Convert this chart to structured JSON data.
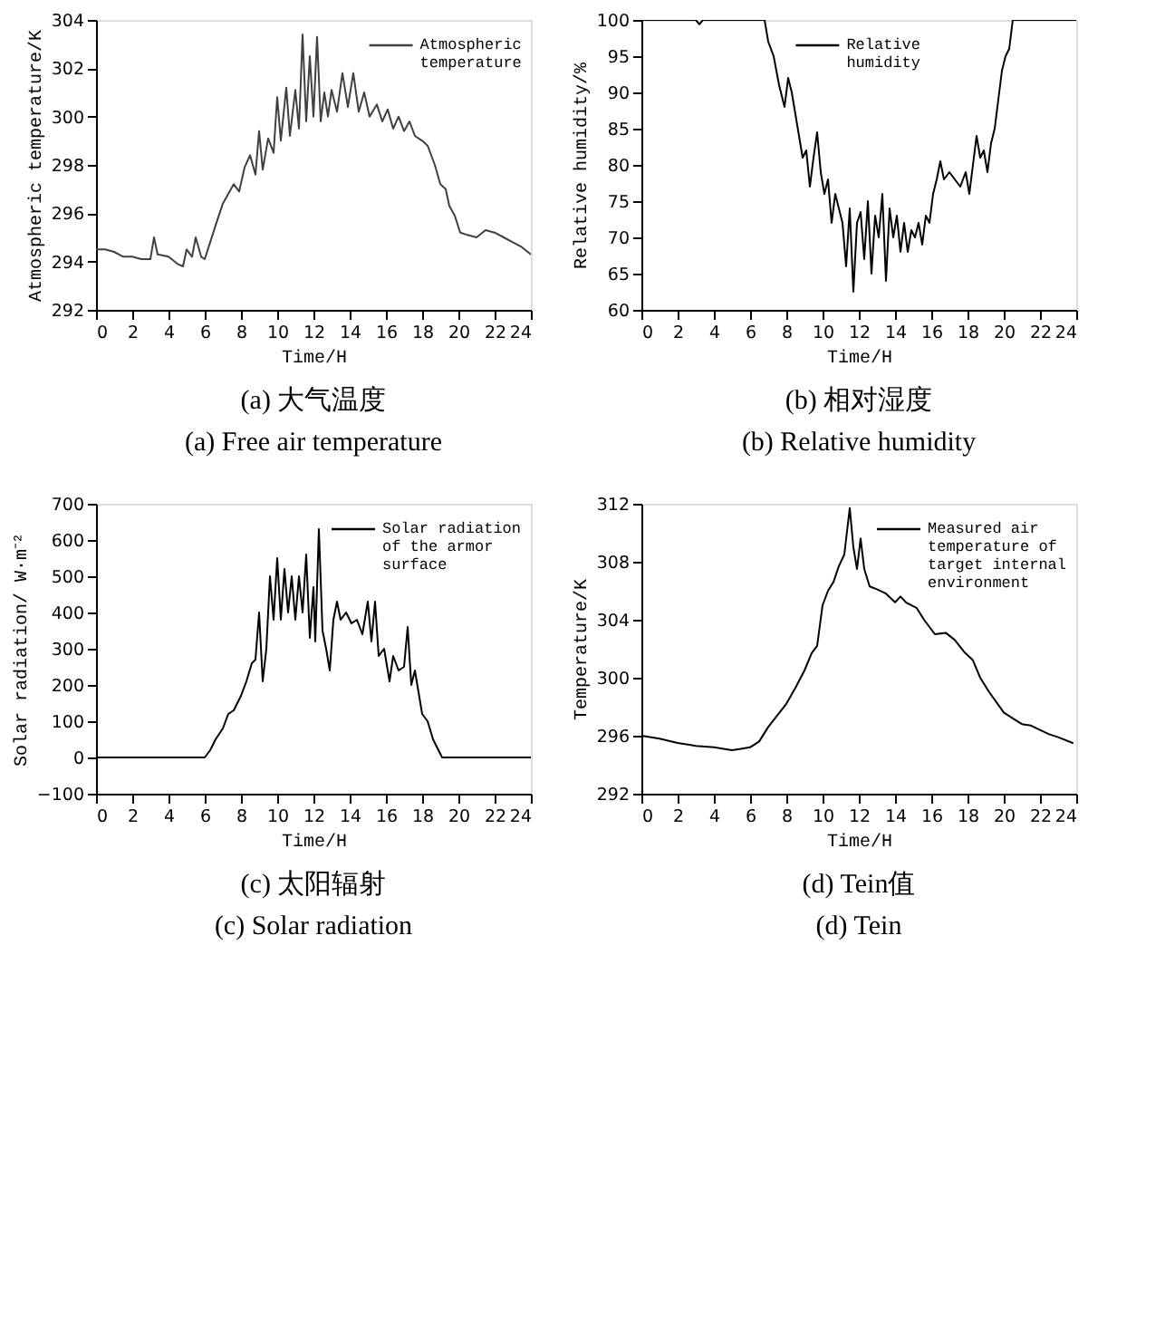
{
  "chart_data": [
    {
      "type": "line",
      "title": "(a) 大气温度",
      "subtitle": "(a) Free air temperature",
      "xlabel": "Time/H",
      "ylabel": "Atmospheric temperature/K",
      "xlim": [
        0,
        24
      ],
      "xticks": [
        0,
        2,
        4,
        6,
        8,
        10,
        12,
        14,
        16,
        18,
        20,
        22,
        24
      ],
      "ylim": [
        292,
        304
      ],
      "yticks": [
        292,
        294,
        296,
        298,
        300,
        302,
        304
      ],
      "grid": false,
      "legend": "top right",
      "series": [
        {
          "name": "Atmospheric temperature",
          "color": "#404040",
          "x": [
            0,
            0.5,
            1,
            1.5,
            2,
            2.5,
            3,
            3.2,
            3.4,
            4,
            4.5,
            4.8,
            5,
            5.3,
            5.5,
            5.8,
            6,
            6.3,
            6.6,
            7,
            7.3,
            7.6,
            7.9,
            8.2,
            8.5,
            8.8,
            9.0,
            9.2,
            9.5,
            9.8,
            10,
            10.2,
            10.5,
            10.7,
            11,
            11.2,
            11.4,
            11.6,
            11.8,
            12,
            12.2,
            12.4,
            12.6,
            12.8,
            13,
            13.3,
            13.6,
            13.9,
            14.2,
            14.5,
            14.8,
            15.1,
            15.5,
            15.8,
            16.1,
            16.4,
            16.7,
            17.0,
            17.3,
            17.6,
            18,
            18.3,
            18.7,
            19,
            19.3,
            19.5,
            19.8,
            20.1,
            20.5,
            21,
            21.5,
            22,
            22.5,
            23,
            23.5,
            24
          ],
          "values": [
            294.5,
            294.5,
            294.4,
            294.2,
            294.2,
            294.1,
            294.1,
            295.0,
            294.3,
            294.2,
            293.9,
            293.8,
            294.5,
            294.2,
            295.0,
            294.2,
            294.1,
            294.8,
            295.5,
            296.4,
            296.8,
            297.2,
            296.9,
            297.9,
            298.4,
            297.6,
            299.4,
            297.8,
            299.1,
            298.5,
            300.8,
            299.0,
            301.2,
            299.2,
            301.1,
            299.5,
            303.4,
            299.8,
            302.5,
            300.0,
            303.3,
            299.8,
            301.0,
            300.0,
            301.1,
            300.2,
            301.8,
            300.4,
            301.8,
            300.2,
            301.0,
            300.0,
            300.5,
            299.8,
            300.3,
            299.5,
            300.0,
            299.4,
            299.8,
            299.2,
            299.0,
            298.8,
            298.0,
            297.2,
            297.0,
            296.3,
            295.9,
            295.2,
            295.1,
            295.0,
            295.3,
            295.2,
            295.0,
            294.8,
            294.6,
            294.3
          ]
        }
      ]
    },
    {
      "type": "line",
      "title": "(b) 相对湿度",
      "subtitle": "(b) Relative humidity",
      "xlabel": "Time/H",
      "ylabel": "Relative humidity/%",
      "xlim": [
        0,
        24
      ],
      "xticks": [
        0,
        2,
        4,
        6,
        8,
        10,
        12,
        14,
        16,
        18,
        20,
        22,
        24
      ],
      "ylim": [
        60,
        100
      ],
      "yticks": [
        60,
        65,
        70,
        75,
        80,
        85,
        90,
        95,
        100
      ],
      "grid": false,
      "legend": "top",
      "series": [
        {
          "name": "Relative humidity",
          "color": "#000000",
          "x": [
            0,
            3,
            3.2,
            3.4,
            6.8,
            7,
            7.3,
            7.6,
            7.9,
            8.1,
            8.3,
            8.5,
            8.7,
            8.9,
            9.1,
            9.3,
            9.5,
            9.7,
            9.9,
            10.1,
            10.3,
            10.5,
            10.7,
            10.9,
            11.1,
            11.3,
            11.5,
            11.7,
            11.9,
            12.1,
            12.3,
            12.5,
            12.7,
            12.9,
            13.1,
            13.3,
            13.5,
            13.7,
            13.9,
            14.1,
            14.3,
            14.5,
            14.7,
            14.9,
            15.1,
            15.3,
            15.5,
            15.7,
            15.9,
            16.1,
            16.3,
            16.5,
            16.7,
            17,
            17.3,
            17.6,
            17.9,
            18.1,
            18.3,
            18.5,
            18.7,
            18.9,
            19.1,
            19.3,
            19.5,
            19.7,
            19.9,
            20.1,
            20.3,
            20.5,
            24
          ],
          "values": [
            100,
            100,
            99.4,
            100,
            100,
            97,
            95,
            91,
            88,
            92,
            90,
            87,
            84,
            81,
            82,
            77,
            81,
            84.5,
            79,
            76,
            78,
            72,
            76,
            74,
            72,
            66,
            74,
            62.5,
            72,
            73.5,
            67,
            75,
            65,
            73,
            70,
            76,
            64,
            74,
            70,
            73,
            68,
            72,
            68,
            71,
            70,
            72,
            69,
            73,
            72,
            76,
            78,
            80.5,
            78,
            79,
            78,
            77,
            79,
            76,
            80,
            84,
            81,
            82,
            79,
            83,
            85,
            89,
            93,
            95,
            96,
            100,
            100
          ]
        }
      ]
    },
    {
      "type": "line",
      "title": "(c) 太阳辐射",
      "subtitle": "(c) Solar radiation",
      "xlabel": "Time/H",
      "ylabel": "Solar radiation/ W·m⁻²",
      "xlim": [
        0,
        24
      ],
      "xticks": [
        0,
        2,
        4,
        6,
        8,
        10,
        12,
        14,
        16,
        18,
        20,
        22,
        24
      ],
      "ylim": [
        -100,
        700
      ],
      "yticks": [
        -100,
        0,
        100,
        200,
        300,
        400,
        500,
        600,
        700
      ],
      "grid": false,
      "legend": "top right",
      "series": [
        {
          "name": "Solar radiation of the armor surface",
          "color": "#000000",
          "x": [
            0,
            6,
            6.3,
            6.6,
            7,
            7.3,
            7.6,
            8,
            8.3,
            8.6,
            8.8,
            9.0,
            9.2,
            9.4,
            9.6,
            9.8,
            10,
            10.2,
            10.4,
            10.6,
            10.8,
            11,
            11.2,
            11.4,
            11.6,
            11.8,
            12.0,
            12.1,
            12.3,
            12.5,
            12.7,
            12.9,
            13.1,
            13.3,
            13.5,
            13.8,
            14.1,
            14.4,
            14.7,
            15,
            15.2,
            15.4,
            15.6,
            15.9,
            16.2,
            16.4,
            16.7,
            17,
            17.2,
            17.4,
            17.6,
            17.8,
            18,
            18.3,
            18.6,
            18.9,
            19.1,
            24
          ],
          "values": [
            0,
            0,
            20,
            50,
            80,
            120,
            130,
            170,
            210,
            260,
            270,
            400,
            210,
            300,
            500,
            380,
            550,
            380,
            520,
            400,
            500,
            380,
            500,
            400,
            560,
            330,
            470,
            320,
            630,
            350,
            300,
            240,
            380,
            430,
            380,
            400,
            370,
            380,
            340,
            430,
            320,
            430,
            280,
            300,
            210,
            280,
            240,
            250,
            360,
            200,
            240,
            180,
            120,
            100,
            50,
            20,
            0,
            0
          ]
        }
      ]
    },
    {
      "type": "line",
      "title": "(d) Tein值",
      "subtitle": "(d) Tein",
      "xlabel": "Time/H",
      "ylabel": "Temperature/K",
      "xlim": [
        0,
        24
      ],
      "xticks": [
        0,
        2,
        4,
        6,
        8,
        10,
        12,
        14,
        16,
        18,
        20,
        22,
        24
      ],
      "ylim": [
        292,
        312
      ],
      "yticks": [
        292,
        296,
        300,
        304,
        308,
        312
      ],
      "grid": false,
      "legend": "top right",
      "series": [
        {
          "name": "Measured air temperature of target internal environment",
          "color": "#000000",
          "x": [
            0,
            1,
            2,
            3,
            4,
            5,
            5.5,
            6,
            6.5,
            7,
            7.5,
            8,
            8.5,
            9,
            9.4,
            9.7,
            10,
            10.3,
            10.6,
            10.9,
            11.2,
            11.5,
            11.7,
            11.9,
            12.1,
            12.3,
            12.6,
            13,
            13.5,
            14,
            14.3,
            14.6,
            15.2,
            15.6,
            16.2,
            16.8,
            17.3,
            17.8,
            18.3,
            18.7,
            19.2,
            19.6,
            20,
            20.5,
            21,
            21.5,
            22,
            22.5,
            23,
            23.8
          ],
          "values": [
            296,
            295.8,
            295.5,
            295.3,
            295.2,
            295,
            295.1,
            295.2,
            295.6,
            296.6,
            297.4,
            298.2,
            299.3,
            300.5,
            301.7,
            302.2,
            305,
            306,
            306.6,
            307.7,
            308.5,
            311.7,
            309,
            307.5,
            309.6,
            307.5,
            306.3,
            306.1,
            305.8,
            305.2,
            305.6,
            305.2,
            304.8,
            304,
            303,
            303.1,
            302.6,
            301.8,
            301.2,
            300,
            299,
            298.3,
            297.6,
            297.2,
            296.8,
            296.7,
            296.4,
            296.1,
            295.9,
            295.5
          ]
        }
      ]
    }
  ]
}
